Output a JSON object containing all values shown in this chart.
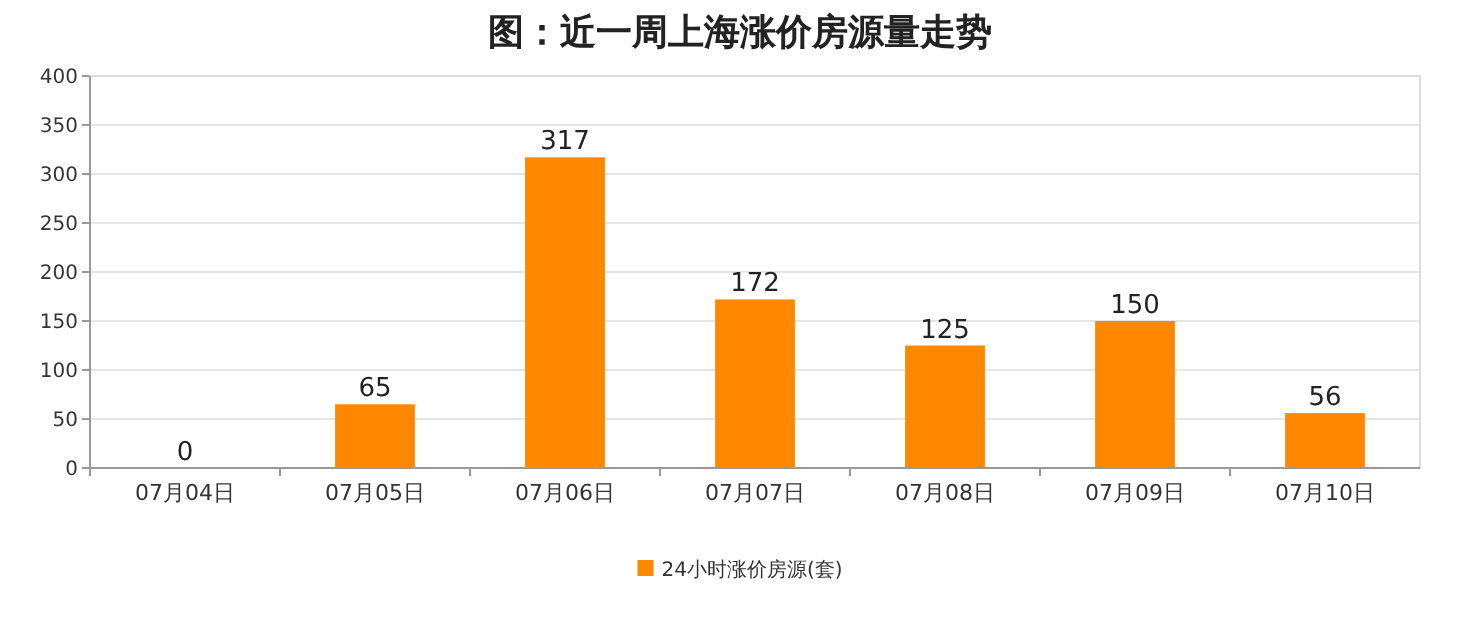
{
  "chart_data": {
    "type": "bar",
    "title": "图：近一周上海涨价房源量走势",
    "categories": [
      "07月04日",
      "07月05日",
      "07月06日",
      "07月07日",
      "07月08日",
      "07月09日",
      "07月10日"
    ],
    "series": [
      {
        "name": "24小时涨价房源(套)",
        "color": "#ff8800",
        "values": [
          0,
          65,
          317,
          172,
          125,
          150,
          56
        ]
      }
    ],
    "ylim": [
      0,
      400
    ],
    "yticks": [
      0,
      50,
      100,
      150,
      200,
      250,
      300,
      350,
      400
    ],
    "grid": "y",
    "legend": "bottom",
    "data_labels": true
  }
}
